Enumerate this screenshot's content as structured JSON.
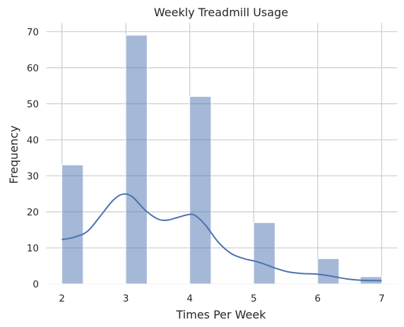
{
  "chart_data": {
    "type": "bar",
    "title": "Weekly Treadmill Usage",
    "xlabel": "Times Per Week",
    "ylabel": "Frequency",
    "xlim": [
      1.75,
      7.25
    ],
    "ylim": [
      0,
      72.5
    ],
    "xticks": [
      2,
      3,
      4,
      5,
      6,
      7
    ],
    "yticks": [
      0,
      10,
      20,
      30,
      40,
      50,
      60,
      70
    ],
    "grid": true,
    "bar_color": "#4C72B0",
    "bar_opacity": 0.5,
    "bins": [
      {
        "x0": 2.0,
        "x1": 2.333,
        "count": 33
      },
      {
        "x0": 3.0,
        "x1": 3.333,
        "count": 69
      },
      {
        "x0": 4.0,
        "x1": 4.333,
        "count": 52
      },
      {
        "x0": 5.0,
        "x1": 5.333,
        "count": 17
      },
      {
        "x0": 6.0,
        "x1": 6.333,
        "count": 7
      },
      {
        "x0": 6.667,
        "x1": 7.0,
        "count": 2
      }
    ],
    "kde": {
      "color": "#4C72B0",
      "points": [
        [
          2.0,
          12.3
        ],
        [
          2.2,
          13.0
        ],
        [
          2.4,
          14.6
        ],
        [
          2.6,
          18.8
        ],
        [
          2.8,
          23.2
        ],
        [
          2.95,
          24.9
        ],
        [
          3.1,
          24.2
        ],
        [
          3.3,
          20.5
        ],
        [
          3.5,
          18.0
        ],
        [
          3.65,
          17.7
        ],
        [
          3.8,
          18.4
        ],
        [
          4.0,
          19.3
        ],
        [
          4.1,
          18.8
        ],
        [
          4.25,
          16.2
        ],
        [
          4.45,
          11.5
        ],
        [
          4.65,
          8.4
        ],
        [
          4.85,
          7.0
        ],
        [
          5.0,
          6.4
        ],
        [
          5.15,
          5.6
        ],
        [
          5.35,
          4.3
        ],
        [
          5.55,
          3.3
        ],
        [
          5.75,
          2.9
        ],
        [
          6.0,
          2.7
        ],
        [
          6.2,
          2.2
        ],
        [
          6.45,
          1.4
        ],
        [
          6.7,
          1.0
        ],
        [
          7.0,
          0.9
        ]
      ]
    }
  }
}
